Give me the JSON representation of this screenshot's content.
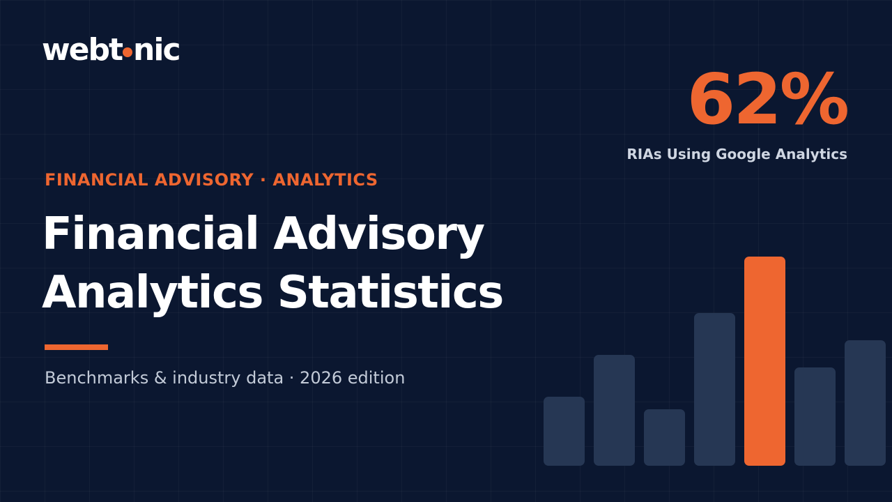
{
  "brand": {
    "logo_before": "webt",
    "logo_after": "nic"
  },
  "hero": {
    "eyebrow": "FINANCIAL ADVISORY · ANALYTICS",
    "title_line1": "Financial Advisory",
    "title_line2": "Analytics Statistics",
    "subtitle": "Benchmarks & industry data · 2026 edition"
  },
  "stat": {
    "value": "62%",
    "label": "RIAs Using Google Analytics"
  },
  "colors": {
    "background": "#0b1730",
    "accent": "#ee6630",
    "bar_muted": "#263754",
    "text_primary": "#ffffff"
  },
  "decor_bars": {
    "values": [
      0.33,
      0.53,
      0.27,
      0.73,
      1.0,
      0.47,
      0.6
    ],
    "highlight_index": 4
  }
}
